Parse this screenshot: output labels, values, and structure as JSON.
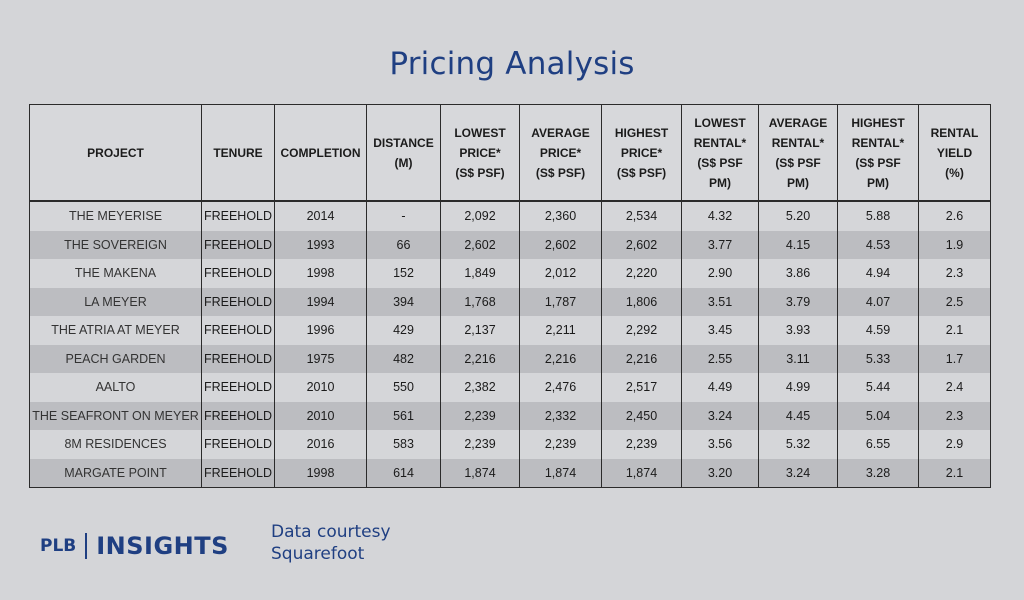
{
  "title": "Pricing Analysis",
  "table": {
    "headers": {
      "project": "PROJECT",
      "tenure": "TENURE",
      "completion": "COMPLETION",
      "distance": [
        "DISTANCE",
        "(M)"
      ],
      "lowest_price": [
        "LOWEST",
        "PRICE*",
        "(S$ PSF)"
      ],
      "average_price": [
        "AVERAGE",
        "PRICE*",
        "(S$ PSF)"
      ],
      "highest_price": [
        "HIGHEST",
        "PRICE*",
        "(S$ PSF)"
      ],
      "lowest_rental": [
        "LOWEST",
        "RENTAL*",
        "(S$ PSF",
        "PM)"
      ],
      "average_rental": [
        "AVERAGE",
        "RENTAL*",
        "(S$ PSF",
        "PM)"
      ],
      "highest_rental": [
        "HIGHEST",
        "RENTAL*",
        "(S$ PSF",
        "PM)"
      ],
      "rental_yield": [
        "RENTAL",
        "YIELD",
        "(%)"
      ]
    },
    "rows": [
      {
        "project": "THE MEYERISE",
        "tenure": "FREEHOLD",
        "completion": "2014",
        "distance": "-",
        "lowest_price": "2,092",
        "average_price": "2,360",
        "highest_price": "2,534",
        "lowest_rental": "4.32",
        "average_rental": "5.20",
        "highest_rental": "5.88",
        "rental_yield": "2.6"
      },
      {
        "project": "THE SOVEREIGN",
        "tenure": "FREEHOLD",
        "completion": "1993",
        "distance": "66",
        "lowest_price": "2,602",
        "average_price": "2,602",
        "highest_price": "2,602",
        "lowest_rental": "3.77",
        "average_rental": "4.15",
        "highest_rental": "4.53",
        "rental_yield": "1.9"
      },
      {
        "project": "THE MAKENA",
        "tenure": "FREEHOLD",
        "completion": "1998",
        "distance": "152",
        "lowest_price": "1,849",
        "average_price": "2,012",
        "highest_price": "2,220",
        "lowest_rental": "2.90",
        "average_rental": "3.86",
        "highest_rental": "4.94",
        "rental_yield": "2.3"
      },
      {
        "project": "LA MEYER",
        "tenure": "FREEHOLD",
        "completion": "1994",
        "distance": "394",
        "lowest_price": "1,768",
        "average_price": "1,787",
        "highest_price": "1,806",
        "lowest_rental": "3.51",
        "average_rental": "3.79",
        "highest_rental": "4.07",
        "rental_yield": "2.5"
      },
      {
        "project": "THE ATRIA AT MEYER",
        "tenure": "FREEHOLD",
        "completion": "1996",
        "distance": "429",
        "lowest_price": "2,137",
        "average_price": "2,211",
        "highest_price": "2,292",
        "lowest_rental": "3.45",
        "average_rental": "3.93",
        "highest_rental": "4.59",
        "rental_yield": "2.1"
      },
      {
        "project": "PEACH GARDEN",
        "tenure": "FREEHOLD",
        "completion": "1975",
        "distance": "482",
        "lowest_price": "2,216",
        "average_price": "2,216",
        "highest_price": "2,216",
        "lowest_rental": "2.55",
        "average_rental": "3.11",
        "highest_rental": "5.33",
        "rental_yield": "1.7"
      },
      {
        "project": "AALTO",
        "tenure": "FREEHOLD",
        "completion": "2010",
        "distance": "550",
        "lowest_price": "2,382",
        "average_price": "2,476",
        "highest_price": "2,517",
        "lowest_rental": "4.49",
        "average_rental": "4.99",
        "highest_rental": "5.44",
        "rental_yield": "2.4"
      },
      {
        "project": "THE SEAFRONT ON MEYER",
        "tenure": "FREEHOLD",
        "completion": "2010",
        "distance": "561",
        "lowest_price": "2,239",
        "average_price": "2,332",
        "highest_price": "2,450",
        "lowest_rental": "3.24",
        "average_rental": "4.45",
        "highest_rental": "5.04",
        "rental_yield": "2.3"
      },
      {
        "project": "8M RESIDENCES",
        "tenure": "FREEHOLD",
        "completion": "2016",
        "distance": "583",
        "lowest_price": "2,239",
        "average_price": "2,239",
        "highest_price": "2,239",
        "lowest_rental": "3.56",
        "average_rental": "5.32",
        "highest_rental": "6.55",
        "rental_yield": "2.9"
      },
      {
        "project": "MARGATE POINT",
        "tenure": "FREEHOLD",
        "completion": "1998",
        "distance": "614",
        "lowest_price": "1,874",
        "average_price": "1,874",
        "highest_price": "1,874",
        "lowest_rental": "3.20",
        "average_rental": "3.24",
        "highest_rental": "3.28",
        "rental_yield": "2.1"
      }
    ]
  },
  "footer": {
    "logo_plb": "PLB",
    "logo_insights": "INSIGHTS",
    "courtesy_line1": "Data courtesy",
    "courtesy_line2": "Squarefoot"
  },
  "colors": {
    "accent": "#1f3f82",
    "background": "#d4d5d8",
    "row_alt": "#bcbdc1"
  }
}
